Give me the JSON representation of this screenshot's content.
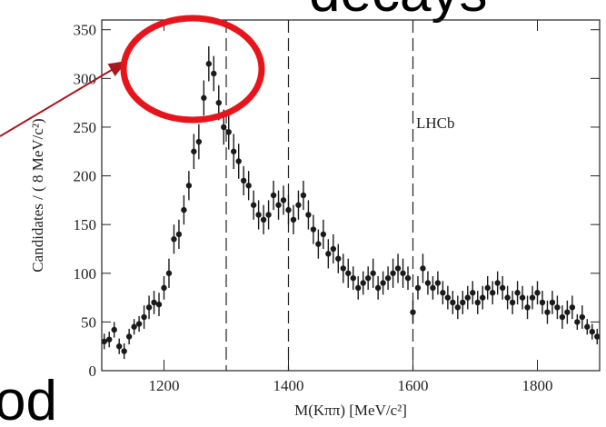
{
  "slide": {
    "title_fragment": "decays",
    "text_fragment": "od"
  },
  "chart_data": {
    "type": "errorbar",
    "x_label": "M(Kππ) [MeV/c²]",
    "y_label": "Candidates / ( 8 MeV/c²)",
    "annotation": "LHCb",
    "xlim": [
      1100,
      1900
    ],
    "xticks": [
      1200,
      1400,
      1600,
      1800
    ],
    "ylim": [
      0,
      360
    ],
    "yticks": [
      0,
      50,
      100,
      150,
      200,
      250,
      300,
      350
    ],
    "vlines": [
      1300,
      1400,
      1600
    ],
    "color": "#1a1a1a",
    "x": [
      1104,
      1112,
      1120,
      1128,
      1136,
      1144,
      1152,
      1160,
      1168,
      1176,
      1184,
      1192,
      1200,
      1208,
      1216,
      1224,
      1232,
      1240,
      1248,
      1256,
      1264,
      1272,
      1280,
      1288,
      1296,
      1304,
      1312,
      1320,
      1328,
      1336,
      1344,
      1352,
      1360,
      1368,
      1376,
      1384,
      1392,
      1400,
      1408,
      1416,
      1424,
      1432,
      1440,
      1448,
      1456,
      1464,
      1472,
      1480,
      1488,
      1496,
      1504,
      1512,
      1520,
      1528,
      1536,
      1544,
      1552,
      1560,
      1568,
      1576,
      1584,
      1592,
      1600,
      1608,
      1616,
      1624,
      1632,
      1640,
      1648,
      1656,
      1664,
      1672,
      1680,
      1688,
      1696,
      1704,
      1712,
      1720,
      1728,
      1736,
      1744,
      1752,
      1760,
      1768,
      1776,
      1784,
      1792,
      1800,
      1808,
      1816,
      1824,
      1832,
      1840,
      1848,
      1856,
      1864,
      1872,
      1880,
      1888,
      1896
    ],
    "values": [
      30,
      32,
      42,
      25,
      20,
      35,
      45,
      48,
      55,
      65,
      70,
      68,
      85,
      100,
      135,
      140,
      165,
      190,
      225,
      235,
      280,
      315,
      305,
      275,
      250,
      245,
      225,
      215,
      195,
      190,
      170,
      160,
      155,
      160,
      180,
      170,
      175,
      165,
      155,
      170,
      180,
      160,
      145,
      130,
      140,
      120,
      125,
      115,
      105,
      100,
      95,
      85,
      90,
      95,
      100,
      85,
      90,
      95,
      100,
      105,
      100,
      95,
      60,
      85,
      105,
      90,
      85,
      90,
      80,
      75,
      70,
      65,
      70,
      75,
      80,
      70,
      75,
      85,
      80,
      90,
      85,
      75,
      70,
      80,
      75,
      65,
      75,
      80,
      70,
      60,
      70,
      65,
      55,
      60,
      65,
      50,
      55,
      45,
      40,
      35
    ],
    "errors": [
      8,
      8,
      8,
      8,
      8,
      8,
      8,
      8,
      12,
      12,
      12,
      12,
      12,
      15,
      15,
      15,
      15,
      15,
      18,
      18,
      18,
      18,
      18,
      18,
      18,
      18,
      18,
      18,
      15,
      15,
      15,
      15,
      15,
      15,
      15,
      15,
      15,
      15,
      15,
      15,
      15,
      15,
      15,
      15,
      15,
      15,
      15,
      15,
      15,
      15,
      12,
      12,
      12,
      12,
      15,
      12,
      12,
      12,
      15,
      15,
      15,
      12,
      12,
      12,
      15,
      12,
      12,
      12,
      12,
      12,
      12,
      12,
      12,
      12,
      12,
      12,
      12,
      12,
      12,
      12,
      12,
      12,
      12,
      12,
      12,
      12,
      12,
      12,
      12,
      12,
      12,
      12,
      12,
      12,
      12,
      8,
      12,
      8,
      8,
      8
    ]
  }
}
